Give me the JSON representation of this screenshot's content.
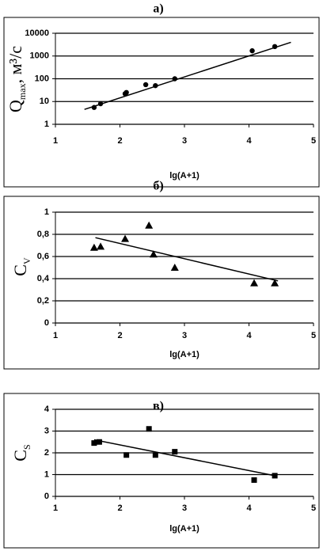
{
  "chart_data": [
    {
      "type": "scatter",
      "title": "а)",
      "xlabel": "lg(A+1)",
      "ylabel": [
        "Q",
        "max",
        ", м³/с"
      ],
      "ylog": true,
      "grid": true,
      "xlim": [
        1,
        5
      ],
      "xticks": [
        1,
        2,
        3,
        4,
        5
      ],
      "ylim": [
        1,
        10000
      ],
      "yticks": [
        1,
        10,
        100,
        1000,
        10000
      ],
      "series": [
        {
          "color": "#000000",
          "marker": "circle",
          "x": [
            1.6,
            1.7,
            2.08,
            2.1,
            2.4,
            2.55,
            2.85,
            4.05,
            4.4
          ],
          "values": [
            5.5,
            8,
            22,
            25,
            55,
            50,
            100,
            1700,
            2600
          ]
        },
        {
          "color": "#000000",
          "marker": "line",
          "x": [
            1.45,
            4.65
          ],
          "values": [
            4.5,
            4000
          ]
        }
      ]
    },
    {
      "type": "scatter",
      "title": "б)",
      "xlabel": "lg(A+1)",
      "ylabel": [
        "C",
        "V",
        ""
      ],
      "ylog": false,
      "grid": true,
      "xlim": [
        1,
        5
      ],
      "xticks": [
        1,
        2,
        3,
        4,
        5
      ],
      "ylim": [
        0,
        1
      ],
      "yticks": [
        0,
        {
          "value": 0.2,
          "label": "0,2"
        },
        {
          "value": 0.4,
          "label": "0,4"
        },
        {
          "value": 0.6,
          "label": "0,6"
        },
        {
          "value": 0.8,
          "label": "0,8"
        },
        1
      ],
      "series": [
        {
          "color": "#000000",
          "marker": "triangle",
          "x": [
            1.6,
            1.7,
            2.08,
            2.45,
            2.52,
            2.85,
            4.08,
            4.4
          ],
          "values": [
            0.68,
            0.69,
            0.76,
            0.88,
            0.62,
            0.5,
            0.36,
            0.36
          ]
        },
        {
          "color": "#000000",
          "marker": "line",
          "x": [
            1.62,
            4.45
          ],
          "values": [
            0.77,
            0.38
          ]
        }
      ]
    },
    {
      "type": "scatter",
      "title": "в)",
      "xlabel": "lg(A+1)",
      "ylabel": [
        "C",
        "S",
        ""
      ],
      "ylog": false,
      "grid": true,
      "xlim": [
        1,
        5
      ],
      "xticks": [
        1,
        2,
        3,
        4,
        5
      ],
      "ylim": [
        0,
        4
      ],
      "yticks": [
        0,
        1,
        2,
        3,
        4
      ],
      "series": [
        {
          "color": "#000000",
          "marker": "square",
          "x": [
            1.6,
            1.68,
            2.1,
            2.45,
            2.55,
            2.85,
            4.08,
            4.4
          ],
          "values": [
            2.45,
            2.5,
            1.9,
            3.1,
            1.9,
            2.05,
            0.75,
            0.95
          ]
        },
        {
          "color": "#000000",
          "marker": "line",
          "x": [
            1.6,
            4.4
          ],
          "values": [
            2.6,
            0.95
          ]
        }
      ]
    }
  ]
}
